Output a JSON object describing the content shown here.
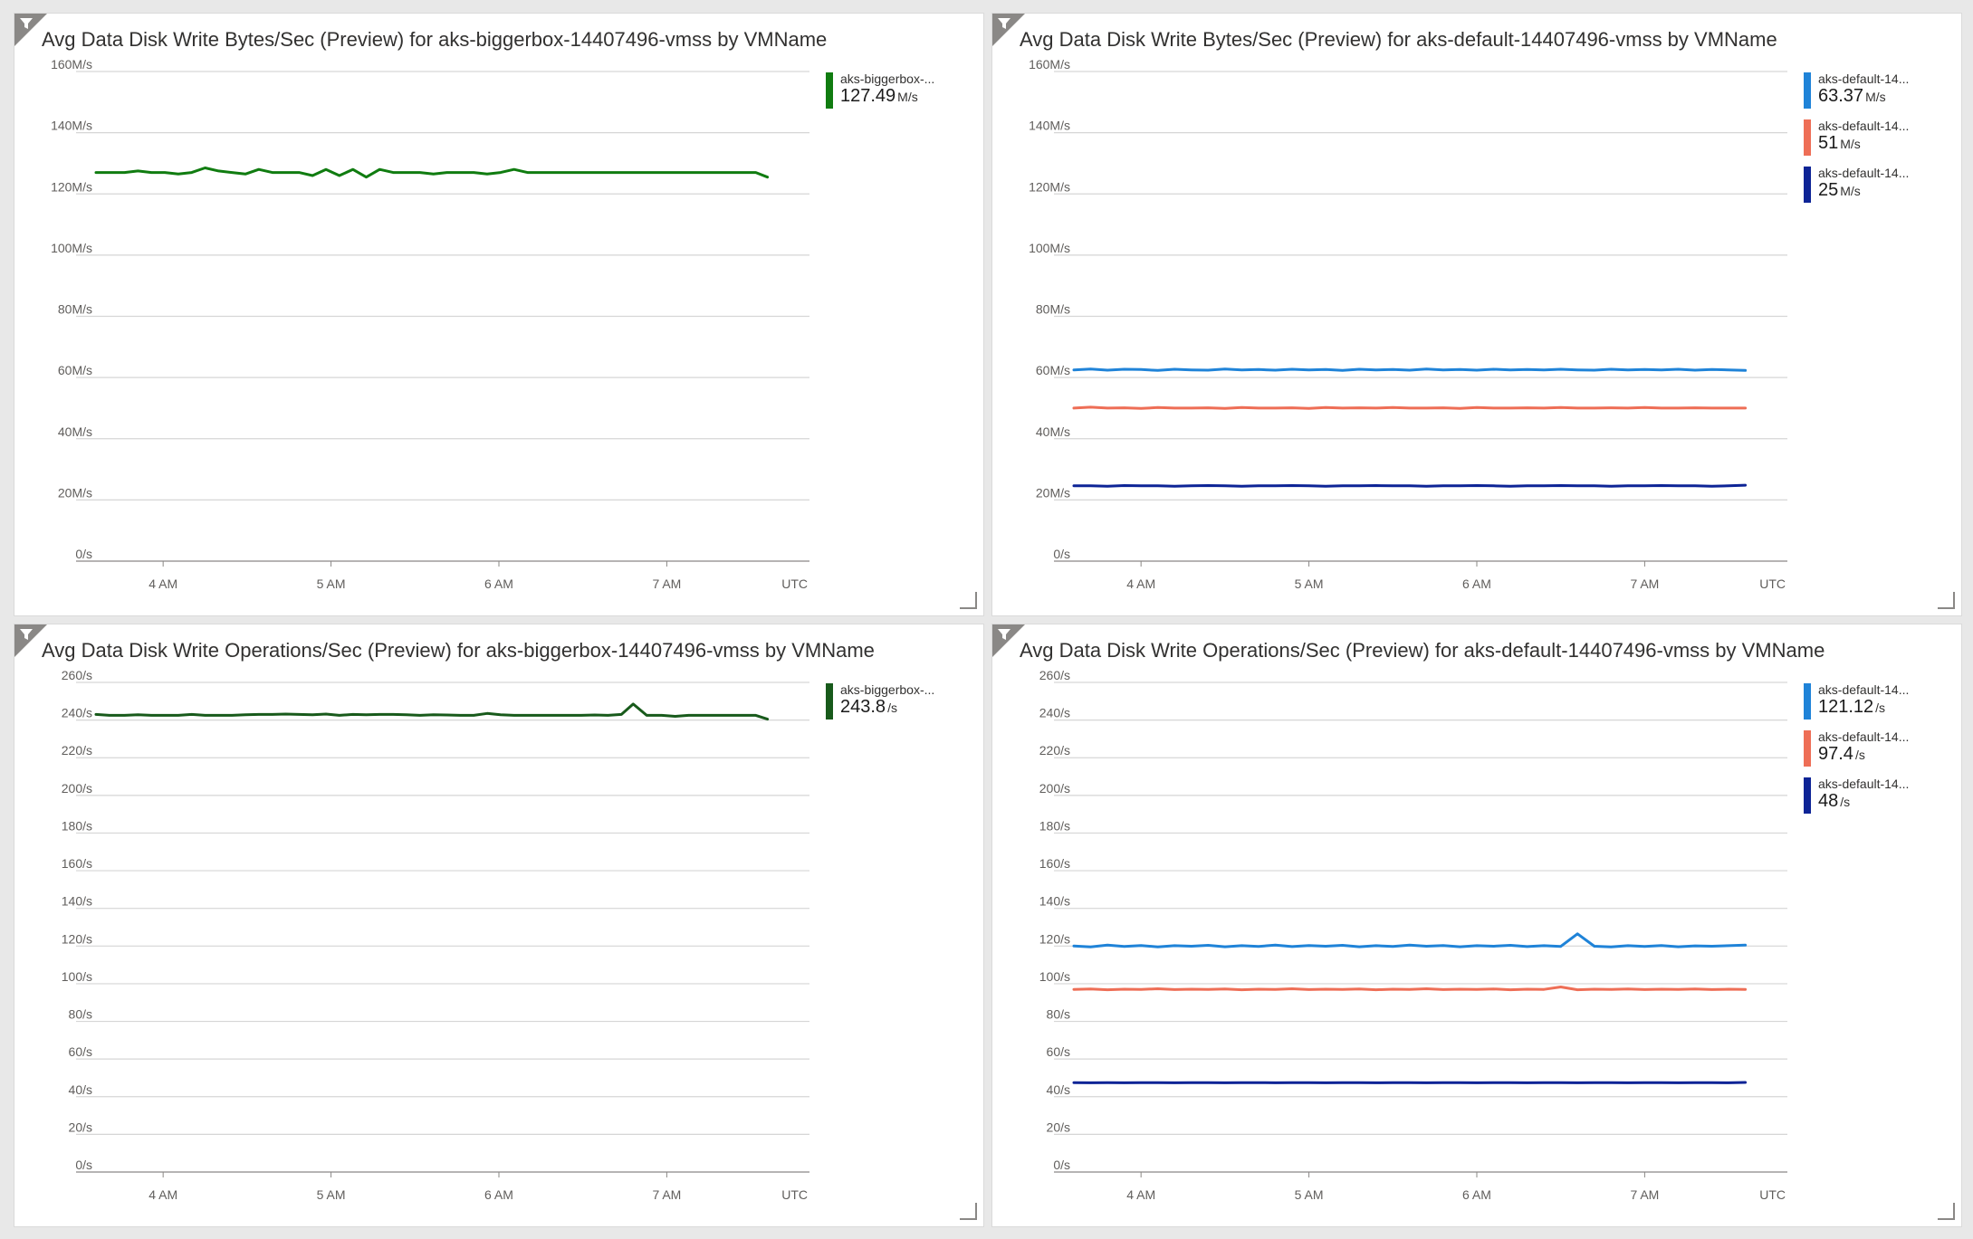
{
  "panels": [
    {
      "id": "p1",
      "title": "Avg Data Disk Write Bytes/Sec (Preview) for aks-biggerbox-14407496-vmss by VMName",
      "time_ticks": [
        "4 AM",
        "5 AM",
        "6 AM",
        "7 AM"
      ],
      "timezone": "UTC",
      "legend": [
        {
          "name": "aks-biggerbox-...",
          "value": "127.49",
          "unit": "M/s",
          "color": "#107c10"
        }
      ]
    },
    {
      "id": "p2",
      "title": "Avg Data Disk Write Bytes/Sec (Preview) for aks-default-14407496-vmss by VMName",
      "time_ticks": [
        "4 AM",
        "5 AM",
        "6 AM",
        "7 AM"
      ],
      "timezone": "UTC",
      "legend": [
        {
          "name": "aks-default-14...",
          "value": "63.37",
          "unit": "M/s",
          "color": "#1f83d8"
        },
        {
          "name": "aks-default-14...",
          "value": "51",
          "unit": "M/s",
          "color": "#ee6e56"
        },
        {
          "name": "aks-default-14...",
          "value": "25",
          "unit": "M/s",
          "color": "#0d2496"
        }
      ]
    },
    {
      "id": "p3",
      "title": "Avg Data Disk Write Operations/Sec (Preview) for aks-biggerbox-14407496-vmss by VMName",
      "time_ticks": [
        "4 AM",
        "5 AM",
        "6 AM",
        "7 AM"
      ],
      "timezone": "UTC",
      "legend": [
        {
          "name": "aks-biggerbox-...",
          "value": "243.8",
          "unit": "/s",
          "color": "#185a1b"
        }
      ]
    },
    {
      "id": "p4",
      "title": "Avg Data Disk Write Operations/Sec (Preview) for aks-default-14407496-vmss by VMName",
      "time_ticks": [
        "4 AM",
        "5 AM",
        "6 AM",
        "7 AM"
      ],
      "timezone": "UTC",
      "legend": [
        {
          "name": "aks-default-14...",
          "value": "121.12",
          "unit": "/s",
          "color": "#1f83d8"
        },
        {
          "name": "aks-default-14...",
          "value": "97.4",
          "unit": "/s",
          "color": "#ee6e56"
        },
        {
          "name": "aks-default-14...",
          "value": "48",
          "unit": "/s",
          "color": "#0d2496"
        }
      ]
    }
  ],
  "chart_data": [
    {
      "type": "line",
      "title": "Avg Data Disk Write Bytes/Sec (Preview) for aks-biggerbox-14407496-vmss by VMName",
      "x_ticks": [
        "4 AM",
        "5 AM",
        "6 AM",
        "7 AM"
      ],
      "xlabel": "UTC",
      "ylim": [
        0,
        160
      ],
      "y_ticks": [
        "0/s",
        "20M/s",
        "40M/s",
        "60M/s",
        "80M/s",
        "100M/s",
        "120M/s",
        "140M/s",
        "160M/s"
      ],
      "x_range_hours": [
        3.6,
        7.65
      ],
      "grid": true,
      "legend_position": "right",
      "series": [
        {
          "color": "#107c10",
          "x": [
            3.6,
            3.68,
            3.77,
            3.85,
            3.93,
            4.01,
            4.09,
            4.17,
            4.25,
            4.33,
            4.41,
            4.49,
            4.57,
            4.65,
            4.73,
            4.81,
            4.89,
            4.97,
            5.05,
            5.13,
            5.21,
            5.29,
            5.37,
            5.45,
            5.53,
            5.61,
            5.69,
            5.77,
            5.85,
            5.93,
            6.01,
            6.09,
            6.17,
            6.25,
            6.33,
            6.41,
            6.49,
            6.57,
            6.65,
            6.73,
            6.81,
            6.89,
            6.97,
            7.05,
            7.13,
            7.21,
            7.29,
            7.37,
            7.45,
            7.53,
            7.6
          ],
          "values": [
            127,
            127,
            127,
            127.5,
            127,
            127,
            126.5,
            127,
            128.5,
            127.5,
            127,
            126.5,
            128,
            127,
            127,
            127,
            126,
            128,
            126,
            128,
            125.5,
            128,
            127,
            127,
            127,
            126.5,
            127,
            127,
            127,
            126.5,
            127,
            128,
            127,
            127,
            127,
            127,
            127,
            127,
            127,
            127,
            127,
            127,
            127,
            127,
            127,
            127,
            127,
            127,
            127,
            127,
            125.5
          ]
        }
      ]
    },
    {
      "type": "line",
      "title": "Avg Data Disk Write Bytes/Sec (Preview) for aks-default-14407496-vmss by VMName",
      "x_ticks": [
        "4 AM",
        "5 AM",
        "6 AM",
        "7 AM"
      ],
      "xlabel": "UTC",
      "ylim": [
        0,
        160
      ],
      "y_ticks": [
        "0/s",
        "20M/s",
        "40M/s",
        "60M/s",
        "80M/s",
        "100M/s",
        "120M/s",
        "140M/s",
        "160M/s"
      ],
      "x_range_hours": [
        3.6,
        7.6
      ],
      "grid": true,
      "legend_position": "right",
      "series": [
        {
          "color": "#1f83d8",
          "values": [
            62.5,
            62.8,
            62.4,
            62.7,
            62.6,
            62.3,
            62.7,
            62.5,
            62.4,
            62.8,
            62.5,
            62.6,
            62.4,
            62.7,
            62.5,
            62.6,
            62.3,
            62.7,
            62.5,
            62.6,
            62.4,
            62.8,
            62.5,
            62.6,
            62.4,
            62.7,
            62.5,
            62.6,
            62.5,
            62.7,
            62.5,
            62.4,
            62.7,
            62.5,
            62.6,
            62.5,
            62.7,
            62.4,
            62.6,
            62.5,
            62.3
          ]
        },
        {
          "color": "#ee6e56",
          "values": [
            50,
            50.3,
            50,
            50.1,
            49.9,
            50.2,
            50,
            50,
            50.1,
            49.9,
            50.2,
            50,
            50,
            50.1,
            49.9,
            50.2,
            50,
            50.1,
            50,
            50.2,
            50,
            50,
            50.1,
            49.9,
            50.2,
            50,
            50,
            50.1,
            50,
            50.2,
            50,
            50,
            50.1,
            50,
            50.2,
            50,
            50,
            50.1,
            50,
            50,
            50
          ]
        },
        {
          "color": "#0d2496",
          "values": [
            24.6,
            24.6,
            24.5,
            24.7,
            24.6,
            24.6,
            24.5,
            24.6,
            24.7,
            24.6,
            24.5,
            24.6,
            24.6,
            24.7,
            24.6,
            24.5,
            24.6,
            24.6,
            24.7,
            24.6,
            24.6,
            24.5,
            24.6,
            24.6,
            24.7,
            24.6,
            24.5,
            24.6,
            24.6,
            24.7,
            24.6,
            24.6,
            24.5,
            24.6,
            24.6,
            24.7,
            24.6,
            24.6,
            24.5,
            24.6,
            24.8
          ]
        }
      ]
    },
    {
      "type": "line",
      "title": "Avg Data Disk Write Operations/Sec (Preview) for aks-biggerbox-14407496-vmss by VMName",
      "x_ticks": [
        "4 AM",
        "5 AM",
        "6 AM",
        "7 AM"
      ],
      "xlabel": "UTC",
      "ylim": [
        0,
        260
      ],
      "y_ticks": [
        "0/s",
        "20/s",
        "40/s",
        "60/s",
        "80/s",
        "100/s",
        "120/s",
        "140/s",
        "160/s",
        "180/s",
        "200/s",
        "220/s",
        "240/s",
        "260/s"
      ],
      "x_range_hours": [
        3.6,
        7.65
      ],
      "grid": true,
      "legend_position": "right",
      "series": [
        {
          "color": "#185a1b",
          "x": [
            3.6,
            3.68,
            3.77,
            3.85,
            3.93,
            4.01,
            4.09,
            4.17,
            4.25,
            4.33,
            4.41,
            4.49,
            4.57,
            4.65,
            4.73,
            4.81,
            4.89,
            4.97,
            5.05,
            5.13,
            5.21,
            5.29,
            5.37,
            5.45,
            5.53,
            5.61,
            5.69,
            5.77,
            5.85,
            5.93,
            6.01,
            6.09,
            6.17,
            6.25,
            6.33,
            6.41,
            6.49,
            6.57,
            6.65,
            6.73,
            6.8,
            6.88,
            6.97,
            7.05,
            7.13,
            7.21,
            7.29,
            7.37,
            7.45,
            7.53,
            7.6
          ],
          "values": [
            243,
            242.5,
            242.5,
            242.8,
            242.5,
            242.5,
            242.5,
            243,
            242.5,
            242.5,
            242.5,
            242.8,
            243,
            243,
            243.2,
            243,
            242.8,
            243.2,
            242.5,
            243,
            242.8,
            243,
            243,
            242.8,
            242.5,
            242.8,
            242.7,
            242.5,
            242.5,
            243.5,
            242.8,
            242.5,
            242.5,
            242.5,
            242.5,
            242.5,
            242.5,
            242.7,
            242.5,
            243,
            248.5,
            242.5,
            242.5,
            242,
            242.5,
            242.5,
            242.5,
            242.5,
            242.5,
            242.5,
            240.5
          ]
        }
      ]
    },
    {
      "type": "line",
      "title": "Avg Data Disk Write Operations/Sec (Preview) for aks-default-14407496-vmss by VMName",
      "x_ticks": [
        "4 AM",
        "5 AM",
        "6 AM",
        "7 AM"
      ],
      "xlabel": "UTC",
      "ylim": [
        0,
        260
      ],
      "y_ticks": [
        "0/s",
        "20/s",
        "40/s",
        "60/s",
        "80/s",
        "100/s",
        "120/s",
        "140/s",
        "160/s",
        "180/s",
        "200/s",
        "220/s",
        "240/s",
        "260/s"
      ],
      "x_range_hours": [
        3.6,
        7.6
      ],
      "grid": true,
      "legend_position": "right",
      "series": [
        {
          "color": "#1f83d8",
          "values": [
            120,
            119.5,
            120.5,
            119.8,
            120.3,
            119.5,
            120.2,
            119.9,
            120.4,
            119.6,
            120.2,
            119.8,
            120.5,
            119.7,
            120.3,
            119.9,
            120.4,
            119.6,
            120.2,
            119.8,
            120.5,
            119.9,
            120.3,
            119.6,
            120.2,
            119.9,
            120.4,
            119.7,
            120.2,
            119.8,
            126.5,
            119.9,
            119.5,
            120.2,
            119.8,
            120.3,
            119.6,
            120.1,
            119.9,
            120.2,
            120.5
          ]
        },
        {
          "color": "#ee6e56",
          "values": [
            97,
            97.2,
            96.8,
            97.1,
            97,
            97.3,
            96.9,
            97.1,
            97,
            97.2,
            96.8,
            97.1,
            97,
            97.3,
            96.9,
            97.1,
            97,
            97.2,
            96.8,
            97.1,
            97,
            97.3,
            96.9,
            97.1,
            97,
            97.2,
            96.8,
            97.1,
            97,
            98.3,
            96.8,
            97.1,
            97,
            97.2,
            96.9,
            97.1,
            97,
            97.2,
            96.9,
            97.1,
            97
          ]
        },
        {
          "color": "#0d2496",
          "values": [
            47.5,
            47.4,
            47.5,
            47.4,
            47.5,
            47.5,
            47.4,
            47.5,
            47.5,
            47.4,
            47.5,
            47.5,
            47.4,
            47.5,
            47.5,
            47.4,
            47.5,
            47.5,
            47.4,
            47.5,
            47.5,
            47.4,
            47.5,
            47.5,
            47.4,
            47.5,
            47.5,
            47.4,
            47.5,
            47.5,
            47.4,
            47.5,
            47.5,
            47.4,
            47.5,
            47.5,
            47.4,
            47.5,
            47.5,
            47.4,
            47.6
          ]
        }
      ]
    }
  ]
}
